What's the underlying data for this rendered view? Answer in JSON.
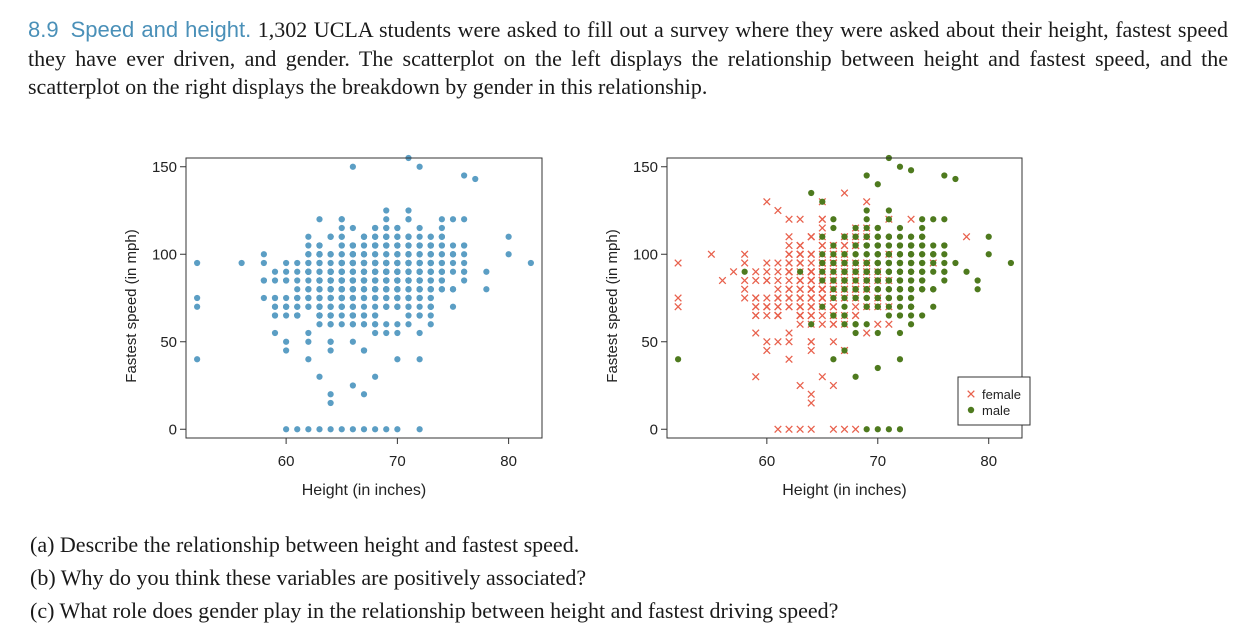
{
  "problem": {
    "number": "8.9",
    "title": "Speed and height.",
    "text": "1,302 UCLA students were asked to fill out a survey where they were asked about their height, fastest speed they have ever driven, and gender. The scatterplot on the left displays the relationship between height and fastest speed, and the scatterplot on the right displays the breakdown by gender in this relationship."
  },
  "questions": [
    {
      "label": "(a)",
      "text": "Describe the relationship between height and fastest speed."
    },
    {
      "label": "(b)",
      "text": "Why do you think these variables are positively associated?"
    },
    {
      "label": "(c)",
      "text": "What role does gender play in the relationship between height and fastest driving speed?"
    }
  ],
  "colors": {
    "all": "#5b9ec4",
    "female": "#e8614d",
    "male": "#4e7a1e"
  },
  "chart_data": [
    {
      "type": "scatter",
      "title": "",
      "xlabel": "Height (in inches)",
      "ylabel": "Fastest speed (in mph)",
      "xlim": [
        51,
        83
      ],
      "ylim": [
        -5,
        155
      ],
      "xticks": [
        60,
        70,
        80
      ],
      "yticks": [
        0,
        50,
        100,
        150
      ],
      "series": [
        {
          "marker": "circle",
          "points": [
            [
              52,
              95
            ],
            [
              52,
              75
            ],
            [
              52,
              70
            ],
            [
              52,
              40
            ],
            [
              56,
              95
            ],
            [
              58,
              85
            ],
            [
              60,
              45
            ],
            [
              62,
              40
            ],
            [
              63,
              30
            ],
            [
              64,
              20
            ],
            [
              64,
              15
            ],
            [
              66,
              25
            ],
            [
              67,
              20
            ],
            [
              68,
              30
            ],
            [
              70,
              40
            ],
            [
              72,
              40
            ],
            [
              74,
              90
            ],
            [
              76,
              100
            ],
            [
              78,
              90
            ],
            [
              78,
              80
            ],
            [
              80,
              110
            ],
            [
              80,
              100
            ],
            [
              82,
              95
            ],
            [
              76,
              145
            ],
            [
              77,
              143
            ],
            [
              72,
              150
            ],
            [
              71,
              155
            ],
            [
              66,
              150
            ],
            [
              60,
              0
            ],
            [
              61,
              0
            ],
            [
              62,
              0
            ],
            [
              63,
              0
            ],
            [
              64,
              0
            ],
            [
              65,
              0
            ],
            [
              66,
              0
            ],
            [
              67,
              0
            ],
            [
              68,
              0
            ],
            [
              69,
              0
            ],
            [
              70,
              0
            ],
            [
              72,
              0
            ]
          ]
        }
      ]
    },
    {
      "type": "scatter",
      "title": "",
      "xlabel": "Height (in inches)",
      "ylabel": "Fastest speed (in mph)",
      "xlim": [
        51,
        83
      ],
      "ylim": [
        -5,
        155
      ],
      "xticks": [
        60,
        70,
        80
      ],
      "yticks": [
        0,
        50,
        100,
        150
      ],
      "legend": {
        "position": "bottom-right"
      },
      "series": [
        {
          "name": "female",
          "marker": "x",
          "points": [
            [
              52,
              95
            ],
            [
              52,
              75
            ],
            [
              52,
              70
            ],
            [
              55,
              100
            ],
            [
              56,
              85
            ],
            [
              57,
              90
            ],
            [
              58,
              80
            ],
            [
              59,
              30
            ],
            [
              60,
              45
            ],
            [
              61,
              50
            ],
            [
              62,
              40
            ],
            [
              63,
              25
            ],
            [
              64,
              20
            ],
            [
              64,
              15
            ],
            [
              65,
              30
            ],
            [
              66,
              25
            ],
            [
              61,
              0
            ],
            [
              62,
              0
            ],
            [
              63,
              0
            ],
            [
              64,
              0
            ],
            [
              66,
              0
            ],
            [
              67,
              0
            ],
            [
              68,
              0
            ],
            [
              60,
              130
            ],
            [
              61,
              125
            ],
            [
              62,
              120
            ],
            [
              65,
              130
            ],
            [
              67,
              135
            ],
            [
              69,
              130
            ],
            [
              73,
              120
            ],
            [
              75,
              95
            ],
            [
              78,
              110
            ]
          ]
        },
        {
          "name": "male",
          "marker": "circle",
          "points": [
            [
              52,
              40
            ],
            [
              58,
              90
            ],
            [
              66,
              40
            ],
            [
              68,
              30
            ],
            [
              70,
              35
            ],
            [
              72,
              40
            ],
            [
              74,
              65
            ],
            [
              76,
              100
            ],
            [
              77,
              95
            ],
            [
              78,
              90
            ],
            [
              79,
              85
            ],
            [
              79,
              80
            ],
            [
              80,
              100
            ],
            [
              80,
              110
            ],
            [
              82,
              95
            ],
            [
              76,
              145
            ],
            [
              77,
              143
            ],
            [
              72,
              150
            ],
            [
              73,
              148
            ],
            [
              71,
              155
            ],
            [
              70,
              140
            ],
            [
              69,
              145
            ],
            [
              69,
              0
            ],
            [
              70,
              0
            ],
            [
              71,
              0
            ],
            [
              72,
              0
            ],
            [
              65,
              130
            ],
            [
              64,
              135
            ],
            [
              66,
              120
            ]
          ]
        }
      ]
    }
  ]
}
